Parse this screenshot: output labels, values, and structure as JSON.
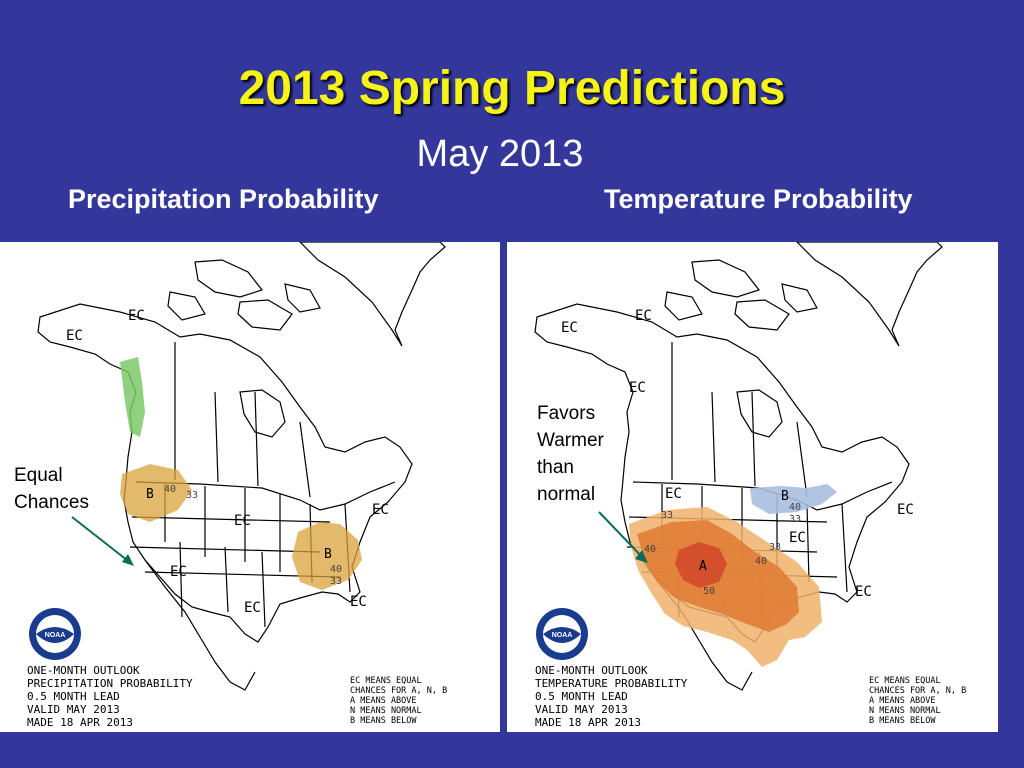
{
  "slide": {
    "title": "2013 Spring Predictions",
    "subtitle": "May 2013",
    "bg_color": "#33369a",
    "title_color": "#f6f316"
  },
  "panels": {
    "left": {
      "heading": "Precipitation Probability",
      "annotation_line1": "Equal",
      "annotation_line2": "Chances",
      "ec_labels": [
        "EC",
        "EC",
        "EC",
        "EC",
        "EC",
        "EC",
        "EC"
      ],
      "region_labels": [
        "B",
        "B"
      ],
      "contour_labels": [
        "40",
        "33",
        "40",
        "33"
      ],
      "footer": {
        "line1": "ONE-MONTH OUTLOOK",
        "line2": "PRECIPITATION PROBABILITY",
        "line3": "0.5 MONTH LEAD",
        "line4": "VALID MAY 2013",
        "line5": "MADE 18 APR 2013"
      },
      "legend": {
        "line1": "EC MEANS EQUAL",
        "line2": "CHANCES FOR A, N, B",
        "line3": "A MEANS ABOVE",
        "line4": "N MEANS NORMAL",
        "line5": "B MEANS BELOW"
      },
      "logo_text": "NOAA",
      "colors": {
        "below": "#d9a33a",
        "wet": "#7cc96a"
      }
    },
    "right": {
      "heading": "Temperature Probability",
      "annotation_line1": "Favors",
      "annotation_line2": "Warmer",
      "annotation_line3": "than",
      "annotation_line4": "normal",
      "ec_labels": [
        "EC",
        "EC",
        "EC",
        "EC",
        "EC",
        "EC",
        "EC"
      ],
      "region_labels": [
        "A",
        "B"
      ],
      "contour_labels": [
        "33",
        "40",
        "33",
        "40",
        "50",
        "40",
        "33"
      ],
      "footer": {
        "line1": "ONE-MONTH OUTLOOK",
        "line2": "TEMPERATURE PROBABILITY",
        "line3": "0.5 MONTH LEAD",
        "line4": "VALID MAY 2013",
        "line5": "MADE 18 APR 2013"
      },
      "legend": {
        "line1": "EC MEANS EQUAL",
        "line2": "CHANCES FOR A, N, B",
        "line3": "A MEANS ABOVE",
        "line4": "N MEANS NORMAL",
        "line5": "B MEANS BELOW"
      },
      "logo_text": "NOAA",
      "colors": {
        "above_33": "#f0b16a",
        "above_40": "#e07d35",
        "above_50": "#d4502a",
        "below": "#a9bfe0"
      }
    }
  }
}
